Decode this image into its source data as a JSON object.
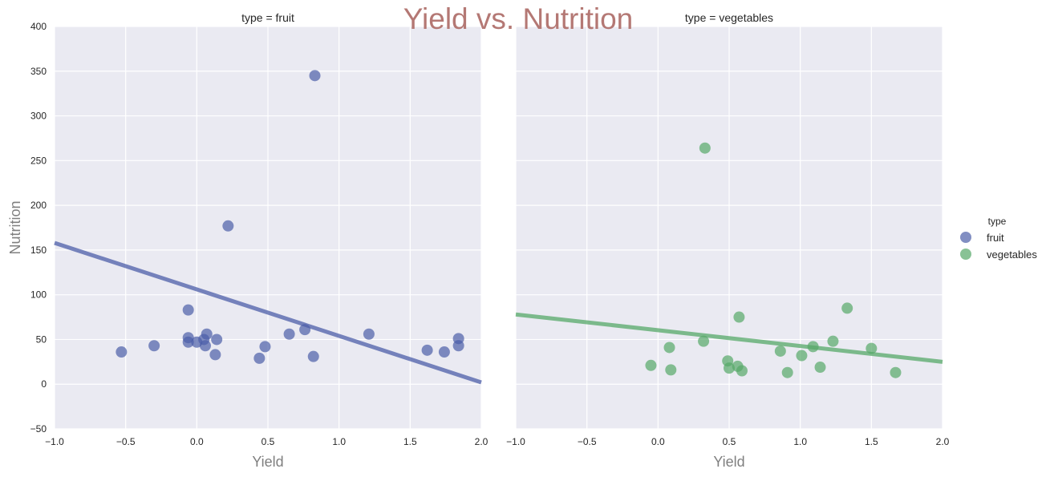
{
  "chart_data": {
    "type": "scatter",
    "title": "Yield vs. Nutrition",
    "xlabel": "Yield",
    "ylabel": "Nutrition",
    "xlim": [
      -1.0,
      2.0
    ],
    "ylim": [
      -50,
      400
    ],
    "x_ticks": [
      "−1.0",
      "−0.5",
      "0.0",
      "0.5",
      "1.0",
      "1.5",
      "2.0"
    ],
    "x_tick_values": [
      -1.0,
      -0.5,
      0.0,
      0.5,
      1.0,
      1.5,
      2.0
    ],
    "y_ticks": [
      "−50",
      "0",
      "50",
      "100",
      "150",
      "200",
      "250",
      "300",
      "350",
      "400"
    ],
    "y_tick_values": [
      -50,
      0,
      50,
      100,
      150,
      200,
      250,
      300,
      350,
      400
    ],
    "grid": true,
    "legend": {
      "title": "type",
      "placement": "right"
    },
    "facets": [
      {
        "title": "type = fruit",
        "name": "fruit",
        "color": "#4c5ea8",
        "x": [
          -0.53,
          -0.3,
          -0.06,
          -0.06,
          -0.06,
          0.0,
          0.05,
          0.06,
          0.07,
          0.13,
          0.14,
          0.22,
          0.44,
          0.48,
          0.65,
          0.76,
          0.82,
          0.83,
          1.21,
          1.62,
          1.74,
          1.84,
          1.84
        ],
        "y": [
          36,
          43,
          83,
          52,
          47,
          47,
          50,
          43,
          56,
          33,
          50,
          177,
          29,
          42,
          56,
          61,
          31,
          345,
          56,
          38,
          36,
          51,
          43
        ],
        "fit": {
          "x": [
            -1.0,
            2.0
          ],
          "y": [
            158,
            2
          ]
        }
      },
      {
        "title": "type = vegetables",
        "name": "vegetables",
        "color": "#55a868",
        "x": [
          -0.05,
          0.08,
          0.09,
          0.32,
          0.33,
          0.49,
          0.5,
          0.56,
          0.57,
          0.59,
          0.86,
          0.91,
          1.01,
          1.09,
          1.14,
          1.23,
          1.33,
          1.5,
          1.67
        ],
        "y": [
          21,
          41,
          16,
          48,
          264,
          26,
          18,
          20,
          75,
          15,
          37,
          13,
          32,
          42,
          19,
          48,
          85,
          40,
          13
        ],
        "fit": {
          "x": [
            -1.0,
            2.0
          ],
          "y": [
            78,
            25
          ]
        }
      }
    ]
  }
}
